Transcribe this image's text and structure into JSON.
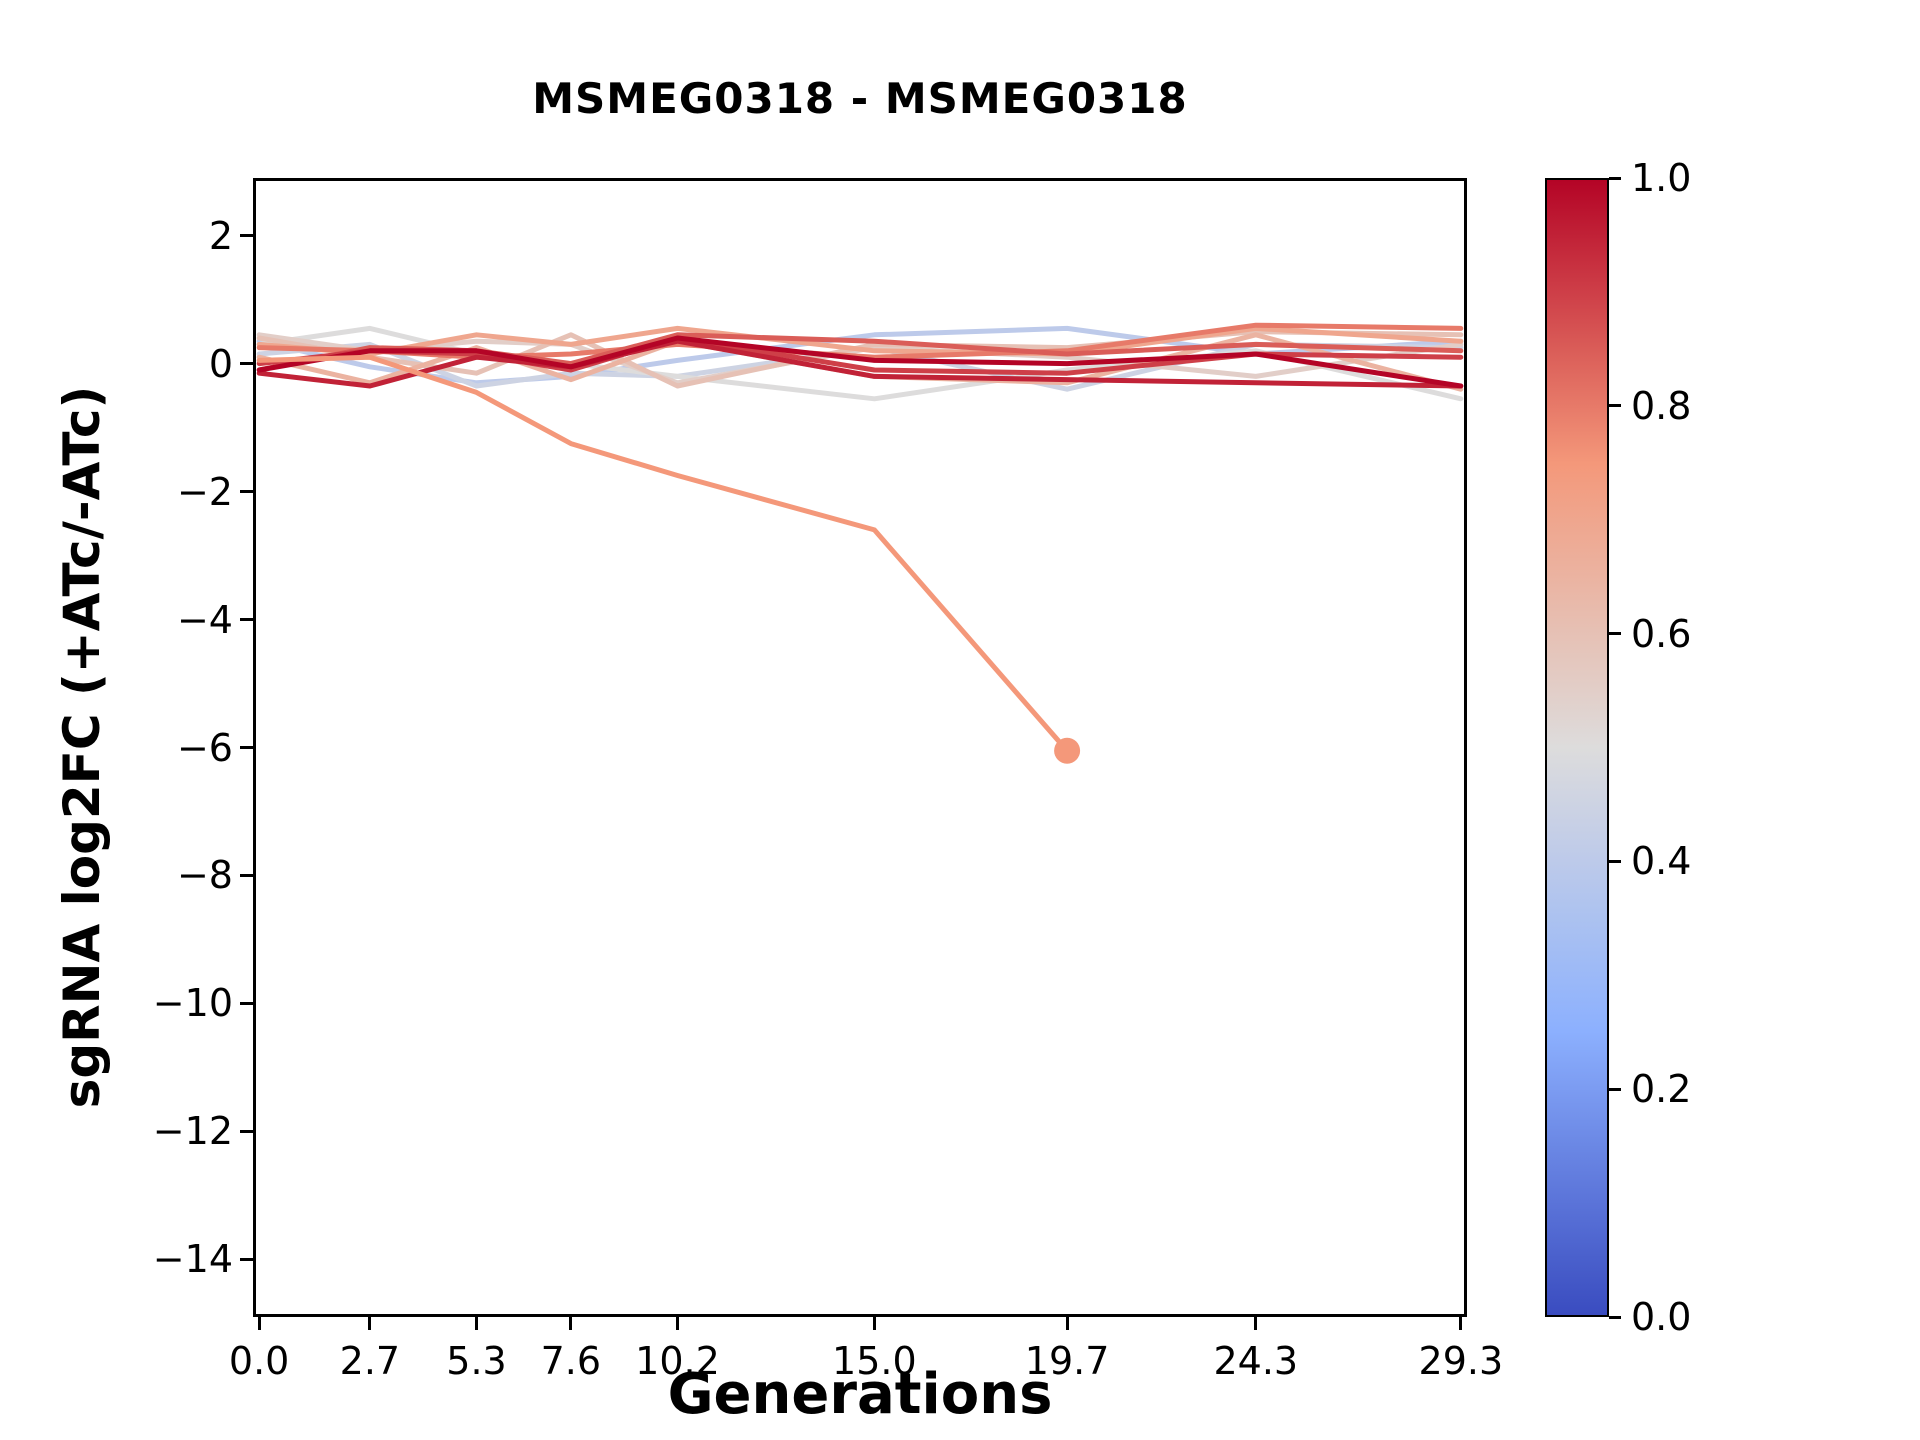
{
  "chart_data": {
    "type": "line",
    "title": "MSMEG0318 - MSMEG0318",
    "xlabel": "Generations",
    "ylabel": "sgRNA log2FC (+ATc/-ATc)",
    "x": [
      0.0,
      2.7,
      5.3,
      7.6,
      10.2,
      15.0,
      19.7,
      24.3,
      29.3
    ],
    "xtick_labels": [
      "0.0",
      "2.7",
      "5.3",
      "7.6",
      "10.2",
      "15.0",
      "19.7",
      "24.3",
      "29.3"
    ],
    "ytick_values": [
      2,
      0,
      -2,
      -4,
      -6,
      -8,
      -10,
      -12,
      -14
    ],
    "ytick_labels": [
      "2",
      "0",
      "−2",
      "−4",
      "−6",
      "−8",
      "−10",
      "−12",
      "−14"
    ],
    "xlim": [
      -0.15,
      29.45
    ],
    "ylim": [
      -14.9,
      2.9
    ],
    "grid": false,
    "legend": "none",
    "line_width": 5,
    "marker_radius": 13,
    "colormap": {
      "name": "coolwarm",
      "anchors": [
        {
          "pos": 0.0,
          "color": "#3A4CC0"
        },
        {
          "pos": 0.25,
          "color": "#8CB0FE"
        },
        {
          "pos": 0.5,
          "color": "#DDDCDC"
        },
        {
          "pos": 0.75,
          "color": "#F4987A"
        },
        {
          "pos": 1.0,
          "color": "#B40426"
        }
      ]
    },
    "colorbar": {
      "ticks": [
        0.0,
        0.2,
        0.4,
        0.6,
        0.8,
        1.0
      ],
      "tick_labels": [
        "0.0",
        "0.2",
        "0.4",
        "0.6",
        "0.8",
        "1.0"
      ]
    },
    "series": [
      {
        "c": 0.4,
        "values": [
          0.35,
          -0.05,
          -0.3,
          -0.2,
          0.05,
          0.45,
          0.55,
          0.15,
          0.35
        ]
      },
      {
        "c": 0.45,
        "values": [
          0.15,
          0.3,
          -0.35,
          -0.15,
          -0.2,
          0.25,
          -0.4,
          0.3,
          0.25
        ]
      },
      {
        "c": 0.5,
        "values": [
          0.3,
          0.55,
          0.15,
          0.0,
          -0.2,
          -0.55,
          -0.1,
          0.2,
          -0.55
        ]
      },
      {
        "c": 0.55,
        "values": [
          0.45,
          0.2,
          0.35,
          0.3,
          -0.3,
          0.25,
          0.1,
          -0.2,
          0.3
        ]
      },
      {
        "c": 0.6,
        "values": [
          0.4,
          0.1,
          -0.15,
          0.45,
          -0.35,
          0.3,
          0.25,
          0.5,
          0.45
        ]
      },
      {
        "c": 0.65,
        "values": [
          0.1,
          -0.3,
          0.25,
          -0.25,
          0.35,
          -0.2,
          -0.3,
          0.45,
          -0.4
        ]
      },
      {
        "c": 0.7,
        "values": [
          0.3,
          0.15,
          0.45,
          0.3,
          0.55,
          0.2,
          0.15,
          0.55,
          0.35
        ]
      },
      {
        "c": 0.8,
        "values": [
          0.25,
          0.2,
          0.1,
          0.15,
          0.3,
          0.1,
          0.2,
          0.6,
          0.55
        ]
      },
      {
        "c": 0.85,
        "values": [
          -0.1,
          0.25,
          0.2,
          0.0,
          0.45,
          0.35,
          0.15,
          0.3,
          0.2
        ]
      },
      {
        "c": 0.9,
        "values": [
          0.0,
          0.2,
          0.15,
          -0.1,
          0.4,
          -0.1,
          -0.15,
          0.15,
          0.1
        ]
      },
      {
        "c": 0.95,
        "values": [
          -0.15,
          -0.35,
          0.1,
          -0.05,
          0.35,
          -0.2,
          -0.25,
          -0.3,
          -0.35
        ]
      },
      {
        "c": 1.0,
        "values": [
          -0.1,
          0.2,
          0.2,
          -0.05,
          0.4,
          0.05,
          0.0,
          0.15,
          -0.35
        ]
      },
      {
        "c": 0.75,
        "values": [
          0.05,
          0.1,
          -0.45,
          -1.25,
          -1.75,
          -2.6,
          -6.05
        ],
        "marker_end": true
      }
    ]
  }
}
